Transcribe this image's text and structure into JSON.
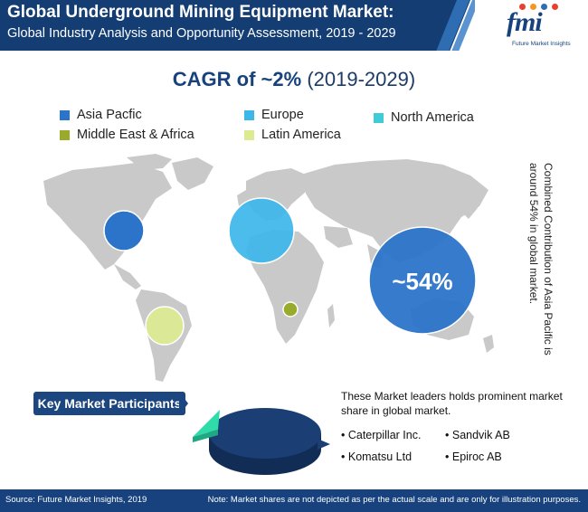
{
  "header": {
    "title": "Global Underground Mining Equipment Market:",
    "subtitle": "Global Industry Analysis and Opportunity Assessment, 2019 - 2029"
  },
  "logo": {
    "text": "fmi",
    "tagline": "Future Market Insights",
    "dot_colors": [
      "#e8402f",
      "#f39a1e",
      "#2f6db3",
      "#e8402f"
    ]
  },
  "cagr": {
    "prefix": "CAGR of ~2%",
    "period": "(2019-2029)"
  },
  "chart_data": {
    "type": "bubble-map",
    "title": "",
    "legend_position": "top",
    "series": [
      {
        "name": "Asia Pacfic",
        "color": "#2b74c9",
        "value_label": "~54%",
        "value": 54
      },
      {
        "name": "Europe",
        "color": "#3db6ea"
      },
      {
        "name": "North America",
        "color": "#3fcbd8"
      },
      {
        "name": "Middle East & Africa",
        "color": "#9aab2b"
      },
      {
        "name": "Latin America",
        "color": "#dcea92"
      }
    ]
  },
  "side_note": "Combined Contribution of Asia Pacific is around 54% in global market.",
  "key_participants": {
    "heading": "Key Market Participants",
    "description": "These Market leaders holds prominent market share in global market.",
    "companies": [
      "Caterpillar Inc.",
      "Sandvik AB",
      "Komatsu Ltd",
      "Epiroc AB"
    ],
    "pie_colors": {
      "main": "#1b3f74",
      "slice": "#2fdba8"
    }
  },
  "footer": {
    "source": "Source: Future Market Insights, 2019",
    "note": "Note: Market shares are not depicted as per the actual scale and are only for illustration purposes."
  }
}
